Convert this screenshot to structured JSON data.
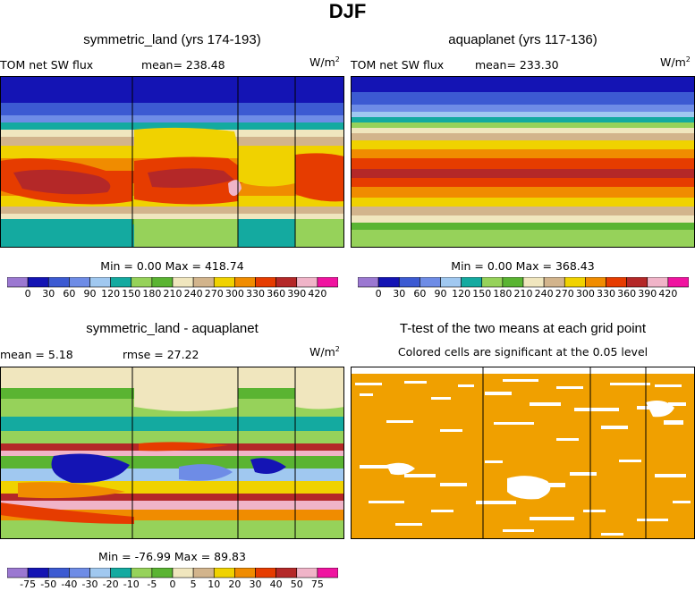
{
  "main_title": "DJF",
  "units": "W/m",
  "units_sup": "2",
  "panels": {
    "top_left": {
      "title": "symmetric_land (yrs 174-193)",
      "variable": "TOM net SW flux",
      "mean_text": "mean= 238.48",
      "minmax_text": "Min =    0.00 Max = 418.74"
    },
    "top_right": {
      "title": "aquaplanet (yrs 117-136)",
      "variable": "TOM net SW flux",
      "mean_text": "mean= 233.30",
      "minmax_text": "Min =    0.00 Max = 368.43"
    },
    "bottom_left": {
      "title": "symmetric_land - aquaplanet",
      "mean_text": "mean =    5.18",
      "rmse_text": "rmse =   27.22",
      "minmax_text": "Min = -76.99 Max =  89.83"
    },
    "bottom_right": {
      "title": "T-test of the two means at each grid point",
      "subtitle": "Colored cells are significant at the 0.05 level"
    }
  },
  "colorbar_abs": {
    "labels": [
      "0",
      "30",
      "60",
      "90",
      "120",
      "150",
      "180",
      "210",
      "240",
      "270",
      "300",
      "330",
      "360",
      "390",
      "420"
    ],
    "label_string": "0  30  60  90 1201501802102402703003303603904 20",
    "colors": [
      "#9b78d1",
      "#1414b4",
      "#3c5ad2",
      "#6e8ce6",
      "#a0c8f0",
      "#14aaa0",
      "#96d25a",
      "#5ab432",
      "#f0e6be",
      "#d2b48c",
      "#f0d200",
      "#f08c00",
      "#e63c00",
      "#b42828",
      "#f0b4c8",
      "#f014a0"
    ]
  },
  "colorbar_diff": {
    "labels": [
      "-75",
      "-50",
      "-40",
      "-30",
      "-20",
      "-10",
      "-5",
      "0",
      "5",
      "10",
      "20",
      "30",
      "40",
      "50",
      "75"
    ],
    "colors": [
      "#9b78d1",
      "#1414b4",
      "#3c5ad2",
      "#6e8ce6",
      "#a0c8f0",
      "#14aaa0",
      "#96d25a",
      "#5ab432",
      "#f0e6be",
      "#d2b48c",
      "#f0d200",
      "#f08c00",
      "#e63c00",
      "#b42828",
      "#f0b4c8",
      "#f014a0"
    ]
  },
  "chart_data": [
    {
      "type": "heatmap",
      "title": "symmetric_land (yrs 174-193)",
      "variable": "TOM net SW flux",
      "units": "W/m^2",
      "mean": 238.48,
      "min": 0.0,
      "max": 418.74,
      "levels": [
        0,
        30,
        60,
        90,
        120,
        150,
        180,
        210,
        240,
        270,
        300,
        330,
        360,
        390,
        420
      ],
      "lat_profile_top_to_bottom": [
        0,
        30,
        90,
        150,
        210,
        270,
        330,
        360,
        330,
        270,
        210,
        150,
        120,
        90
      ]
    },
    {
      "type": "heatmap",
      "title": "aquaplanet (yrs 117-136)",
      "variable": "TOM net SW flux",
      "units": "W/m^2",
      "mean": 233.3,
      "min": 0.0,
      "max": 368.43,
      "levels": [
        0,
        30,
        60,
        90,
        120,
        150,
        180,
        210,
        240,
        270,
        300,
        330,
        360,
        390,
        420
      ],
      "lat_profile_top_to_bottom": [
        0,
        30,
        90,
        150,
        210,
        240,
        300,
        330,
        360,
        330,
        270,
        210,
        180,
        150
      ]
    },
    {
      "type": "heatmap",
      "title": "symmetric_land - aquaplanet",
      "units": "W/m^2",
      "mean": 5.18,
      "rmse": 27.22,
      "min": -76.99,
      "max": 89.83,
      "levels": [
        -75,
        -50,
        -40,
        -30,
        -20,
        -10,
        -5,
        0,
        5,
        10,
        20,
        30,
        40,
        50,
        75
      ]
    },
    {
      "type": "heatmap",
      "title": "T-test of the two means at each grid point",
      "significance_level": 0.05,
      "significant_color": "#f0a000"
    }
  ]
}
